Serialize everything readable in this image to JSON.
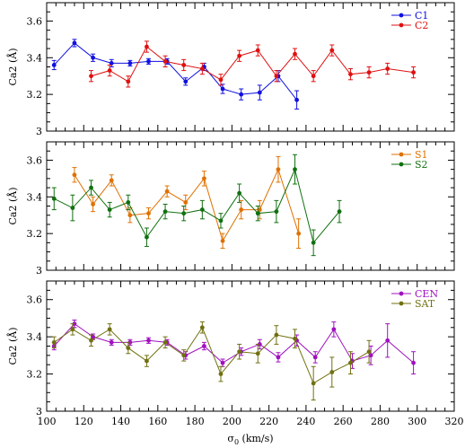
{
  "chart_data": [
    {
      "type": "line",
      "panel": "top",
      "xlim": [
        100,
        320
      ],
      "ylim": [
        3,
        3.7
      ],
      "yticks": [
        3,
        3.2,
        3.4,
        3.6
      ],
      "ytick_labels": [
        "3",
        "3.2",
        "3.4",
        "3.6"
      ],
      "ylabel": "Ca2 (Å)",
      "xlabel": "",
      "show_xtick_labels": false,
      "legend_position": "top-right",
      "series": [
        {
          "name": "C1",
          "color": "#1010e0",
          "x": [
            104,
            115,
            125,
            135,
            145,
            155,
            165,
            175,
            185,
            195,
            205,
            215,
            225,
            235
          ],
          "y": [
            3.36,
            3.48,
            3.4,
            3.37,
            3.37,
            3.38,
            3.38,
            3.27,
            3.35,
            3.23,
            3.2,
            3.21,
            3.3,
            3.17
          ],
          "err": [
            0.025,
            0.02,
            0.02,
            0.02,
            0.015,
            0.015,
            0.015,
            0.02,
            0.02,
            0.025,
            0.03,
            0.04,
            0.03,
            0.05
          ]
        },
        {
          "name": "C2",
          "color": "#e01010",
          "x": [
            124,
            134,
            144,
            154,
            164,
            174,
            184,
            194,
            204,
            214,
            224,
            234,
            244,
            254,
            264,
            274,
            284,
            298
          ],
          "y": [
            3.3,
            3.33,
            3.27,
            3.46,
            3.38,
            3.36,
            3.34,
            3.28,
            3.41,
            3.44,
            3.3,
            3.42,
            3.3,
            3.44,
            3.31,
            3.32,
            3.34,
            3.32
          ]
        }
      ]
    },
    {
      "type": "line",
      "panel": "middle",
      "xlim": [
        100,
        320
      ],
      "ylim": [
        3,
        3.7
      ],
      "yticks": [
        3,
        3.2,
        3.4,
        3.6
      ],
      "ytick_labels": [
        "3",
        "3.2",
        "3.4",
        "3.6"
      ],
      "ylabel": "Ca2 (Å)",
      "xlabel": "",
      "show_xtick_labels": false,
      "legend_position": "top-right",
      "series": [
        {
          "name": "S1",
          "color": "#e07000",
          "x": [
            115,
            125,
            135,
            145,
            155,
            165,
            175,
            185,
            195,
            205,
            215,
            225,
            236
          ],
          "y": [
            3.52,
            3.36,
            3.49,
            3.3,
            3.31,
            3.43,
            3.37,
            3.5,
            3.16,
            3.33,
            3.33,
            3.55,
            3.2
          ],
          "err": [
            0.04,
            0.04,
            0.03,
            0.04,
            0.03,
            0.03,
            0.04,
            0.04,
            0.04,
            0.05,
            0.05,
            0.07,
            0.08
          ]
        },
        {
          "name": "S2",
          "color": "#107010",
          "x": [
            104,
            114,
            124,
            134,
            144,
            154,
            164,
            174,
            184,
            194,
            204,
            214,
            224,
            234,
            244,
            258
          ],
          "y": [
            3.39,
            3.34,
            3.45,
            3.33,
            3.37,
            3.18,
            3.32,
            3.31,
            3.33,
            3.27,
            3.42,
            3.31,
            3.32,
            3.55,
            3.15,
            3.32
          ],
          "err": [
            0.06,
            0.07,
            0.04,
            0.04,
            0.04,
            0.05,
            0.04,
            0.04,
            0.05,
            0.04,
            0.05,
            0.04,
            0.06,
            0.08,
            0.07,
            0.06
          ]
        }
      ]
    },
    {
      "type": "line",
      "panel": "bottom",
      "xlim": [
        100,
        320
      ],
      "ylim": [
        3,
        3.7
      ],
      "yticks": [
        3,
        3.2,
        3.4,
        3.6
      ],
      "ytick_labels": [
        "3",
        "3.2",
        "3.4",
        "3.6"
      ],
      "xticks": [
        100,
        120,
        140,
        160,
        180,
        200,
        220,
        240,
        260,
        280,
        300,
        320
      ],
      "xtick_labels": [
        "100",
        "120",
        "140",
        "160",
        "180",
        "200",
        "220",
        "240",
        "260",
        "280",
        "300",
        "320"
      ],
      "ylabel": "Ca2 (Å)",
      "xlabel": "σ0 (km/s)",
      "show_xtick_labels": true,
      "legend_position": "top-right",
      "series": [
        {
          "name": "CEN",
          "color": "#a010c0",
          "x": [
            104,
            115,
            125,
            135,
            145,
            155,
            165,
            175,
            185,
            195,
            205,
            215,
            225,
            235,
            245,
            255,
            265,
            275,
            284,
            298
          ],
          "y": [
            3.35,
            3.47,
            3.4,
            3.37,
            3.37,
            3.38,
            3.37,
            3.3,
            3.35,
            3.26,
            3.32,
            3.36,
            3.29,
            3.38,
            3.29,
            3.44,
            3.27,
            3.3,
            3.38,
            3.26
          ],
          "err": [
            0.02,
            0.02,
            0.015,
            0.015,
            0.015,
            0.015,
            0.015,
            0.02,
            0.02,
            0.02,
            0.02,
            0.025,
            0.025,
            0.03,
            0.03,
            0.04,
            0.04,
            0.05,
            0.09,
            0.06
          ]
        },
        {
          "name": "SAT",
          "color": "#707010",
          "x": [
            104,
            114,
            124,
            134,
            144,
            154,
            164,
            174,
            184,
            194,
            204,
            214,
            224,
            234,
            244,
            254,
            264,
            274
          ],
          "y": [
            3.37,
            3.44,
            3.38,
            3.44,
            3.34,
            3.27,
            3.37,
            3.3,
            3.45,
            3.2,
            3.32,
            3.31,
            3.41,
            3.39,
            3.15,
            3.21,
            3.26,
            3.32
          ],
          "err": [
            0.03,
            0.03,
            0.03,
            0.03,
            0.03,
            0.03,
            0.03,
            0.03,
            0.03,
            0.04,
            0.04,
            0.05,
            0.05,
            0.05,
            0.09,
            0.08,
            0.06,
            0.06
          ]
        }
      ]
    }
  ]
}
